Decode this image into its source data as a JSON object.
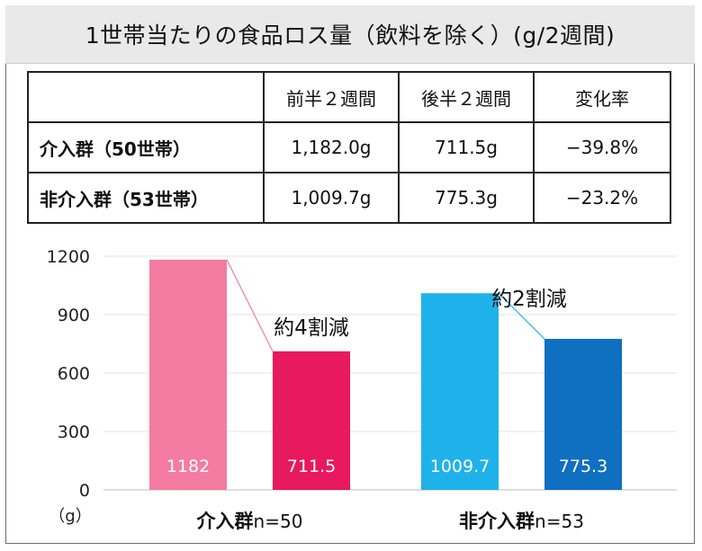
{
  "title": "1世帯当たりの食品ロス量（飲料を除く）(g/2週間)",
  "table": {
    "headers": [
      "",
      "前半２週間",
      "後半２週間",
      "変化率"
    ],
    "rows": [
      {
        "label": "介入群（50世帯）",
        "first": "1,182.0g",
        "second": "711.5g",
        "change": "−39.8%"
      },
      {
        "label": "非介入群（53世帯）",
        "first": "1,009.7g",
        "second": "775.3g",
        "change": "−23.2%"
      }
    ]
  },
  "chart_data": {
    "type": "bar",
    "ylabel": "（g）",
    "ylim": [
      0,
      1200
    ],
    "yticks": [
      0,
      300,
      600,
      900,
      1200
    ],
    "groups": [
      {
        "label_main": "介入群",
        "label_n": "n=50",
        "annotation": "約4割減",
        "bars": [
          {
            "name": "前半２週間",
            "value": 1182,
            "label": "1182",
            "color": "#f47ba1"
          },
          {
            "name": "後半２週間",
            "value": 711.5,
            "label": "711.5",
            "color": "#e8195e"
          }
        ]
      },
      {
        "label_main": "非介入群",
        "label_n": "n=53",
        "annotation": "約2割減",
        "bars": [
          {
            "name": "前半２週間",
            "value": 1009.7,
            "label": "1009.7",
            "color": "#1fb2ea"
          },
          {
            "name": "後半２週間",
            "value": 775.3,
            "label": "775.3",
            "color": "#0f6fc0"
          }
        ]
      }
    ],
    "grid": true,
    "connector_colors": [
      "#f47ba1",
      "#1fb2ea"
    ]
  }
}
